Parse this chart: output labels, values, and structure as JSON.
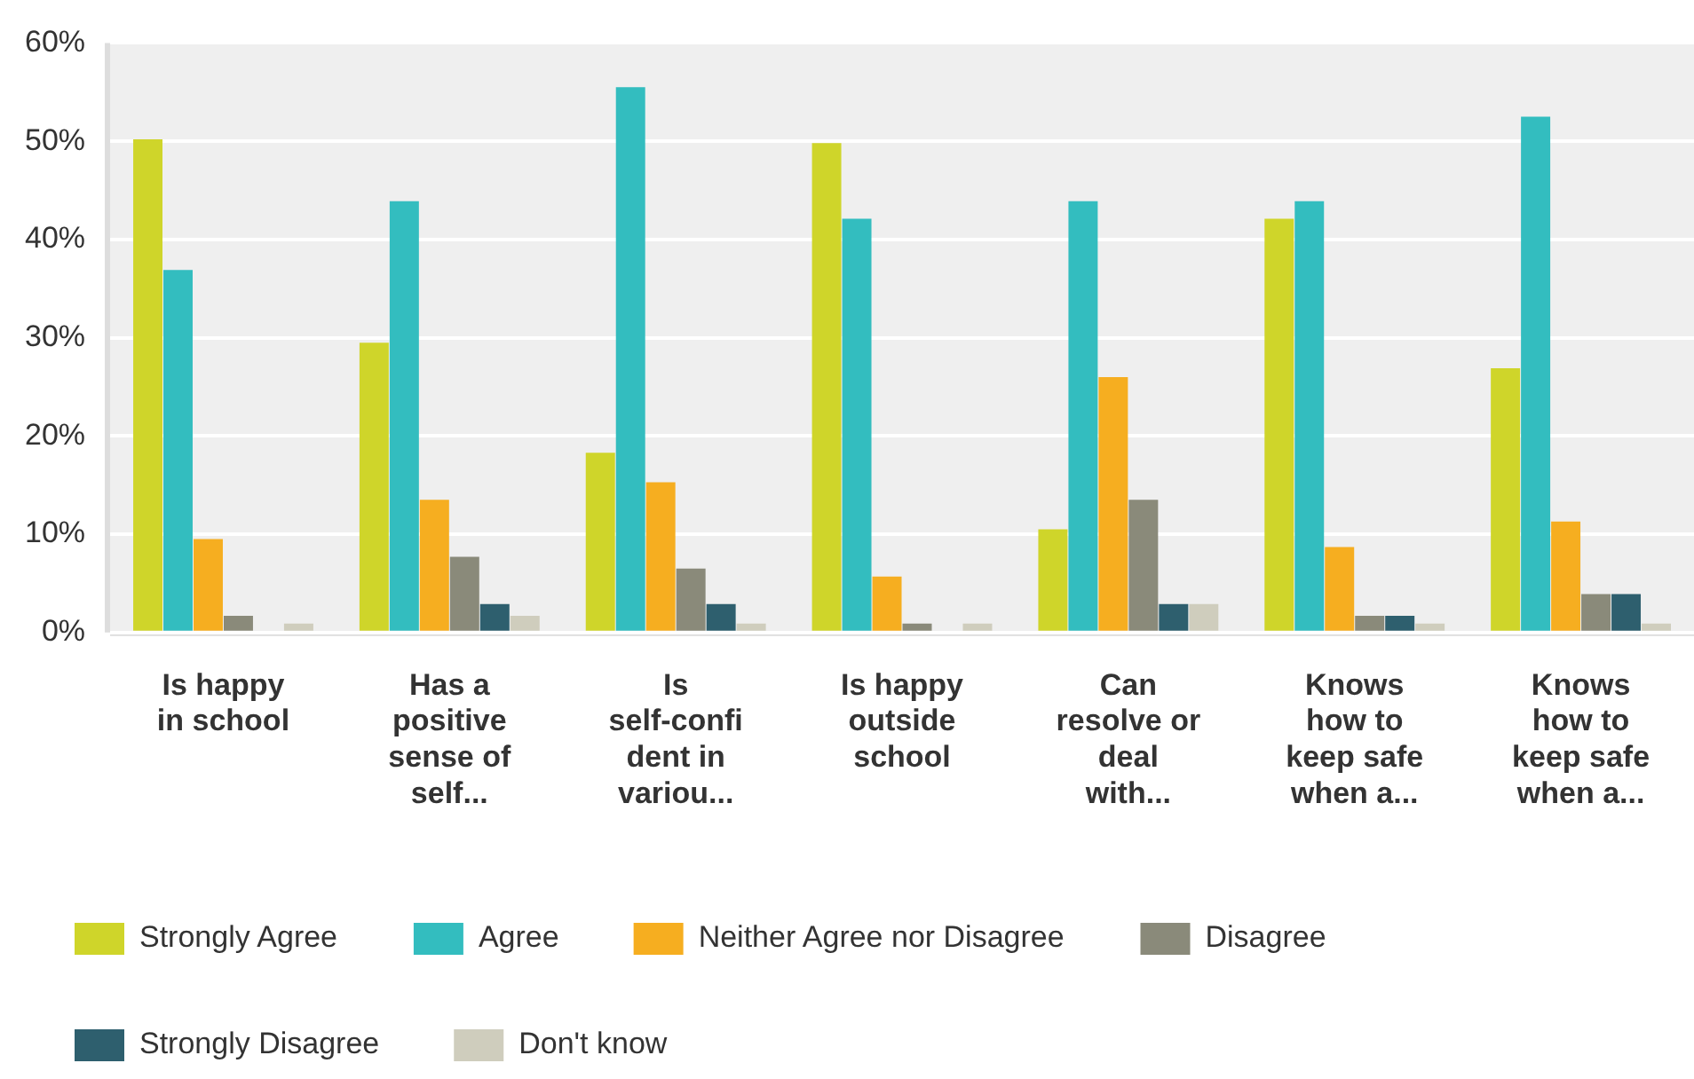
{
  "chart_data": {
    "type": "bar",
    "categories": [
      "Is happy in school",
      "Has a positive sense of self...",
      "Is self-confident in variou...",
      "Is happy outside school",
      "Can resolve or deal with...",
      "Knows how to keep safe when a...",
      "Knows how to keep safe when a..."
    ],
    "series": [
      {
        "name": "Strongly Agree",
        "color": "#cfd52a",
        "values": [
          50.2,
          29.5,
          18.3,
          49.8,
          10.5,
          42.1,
          26.9
        ]
      },
      {
        "name": "Agree",
        "color": "#33bdbf",
        "values": [
          36.9,
          43.9,
          55.5,
          42.1,
          43.9,
          43.9,
          52.5
        ]
      },
      {
        "name": "Neither Agree nor Disagree",
        "color": "#f6ae20",
        "values": [
          9.5,
          13.5,
          15.3,
          5.7,
          26.0,
          8.7,
          11.3
        ]
      },
      {
        "name": "Disagree",
        "color": "#8a8a7a",
        "values": [
          1.7,
          7.7,
          6.5,
          0.9,
          13.5,
          1.7,
          3.9
        ]
      },
      {
        "name": "Strongly Disagree",
        "color": "#2e5f6e",
        "values": [
          0,
          2.9,
          2.9,
          0,
          2.9,
          1.7,
          3.9
        ]
      },
      {
        "name": "Don't know",
        "color": "#cfcdbd",
        "values": [
          0.9,
          1.7,
          0.9,
          0.9,
          2.9,
          0.9,
          0.9
        ]
      }
    ],
    "ylim": [
      0,
      60
    ],
    "yticks": [
      {
        "value": 0,
        "label": "0%"
      },
      {
        "value": 10,
        "label": "10%"
      },
      {
        "value": 20,
        "label": "20%"
      },
      {
        "value": 30,
        "label": "30%"
      },
      {
        "value": 40,
        "label": "40%"
      },
      {
        "value": 50,
        "label": "50%"
      },
      {
        "value": 60,
        "label": "60%"
      }
    ],
    "grid": "y",
    "legend": "bottom left"
  }
}
